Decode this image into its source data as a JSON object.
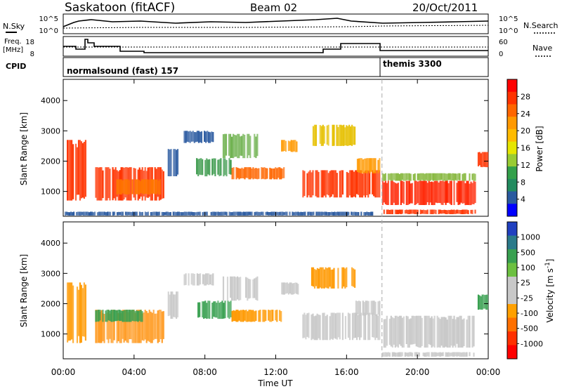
{
  "header": {
    "station": "Saskatoon (fitACF)",
    "beam": "Beam 02",
    "date": "20/Oct/2011"
  },
  "top_panels": {
    "nsky_label": "N.Sky",
    "nsearch_label": "N.Search",
    "noise_ticks_left": [
      "10^5",
      "10^0"
    ],
    "noise_ticks_right": [
      "10^5",
      "10^0"
    ],
    "freq_label_1": "Freq.",
    "freq_label_2": "[MHz]",
    "freq_ticks": [
      "18",
      "8"
    ],
    "nave_label": "Nave",
    "nave_ticks": [
      "60",
      "0"
    ],
    "cpid_label": "CPID",
    "cpid_segments": [
      {
        "label": "normalsound (fast) 157",
        "start_hour": 0,
        "end_hour": 18
      },
      {
        "label": "themis 3300",
        "start_hour": 18,
        "end_hour": 24
      }
    ]
  },
  "chart_data": [
    {
      "type": "heatmap",
      "title": "",
      "xlabel": "Time UT",
      "ylabel": "Slant Range [km]",
      "xlim_hours": [
        0,
        24
      ],
      "ylim_km": [
        180,
        4700
      ],
      "x_ticks": [
        "00:00",
        "04:00",
        "08:00",
        "12:00",
        "16:00",
        "20:00",
        "00:00"
      ],
      "y_ticks": [
        "1000",
        "2000",
        "3000",
        "4000"
      ],
      "y_tick_values": [
        1000,
        2000,
        3000,
        4000
      ],
      "colorbar": {
        "label": "Power [dB]",
        "ticks": [
          "28",
          "24",
          "20",
          "16",
          "12",
          "8",
          "4"
        ],
        "colors": [
          "#ff0000",
          "#ff3300",
          "#ff6600",
          "#ff9900",
          "#ffbb00",
          "#e6e600",
          "#99cc33",
          "#33a04a",
          "#228b5f",
          "#2a5aa0",
          "#0000ff"
        ]
      },
      "echo_regions": [
        {
          "t": [
            0.2,
            1.3
          ],
          "r": [
            700,
            2700
          ],
          "color": "#ff3300"
        },
        {
          "t": [
            1.8,
            5.7
          ],
          "r": [
            700,
            1800
          ],
          "color": "#ff3300"
        },
        {
          "t": [
            3.0,
            5.5
          ],
          "r": [
            900,
            1400
          ],
          "color": "#ff7700"
        },
        {
          "t": [
            5.9,
            6.5
          ],
          "r": [
            1500,
            2400
          ],
          "color": "#2a5aa0"
        },
        {
          "t": [
            6.8,
            8.5
          ],
          "r": [
            2600,
            3000
          ],
          "color": "#2a5aa0"
        },
        {
          "t": [
            7.5,
            9.5
          ],
          "r": [
            1500,
            2100
          ],
          "color": "#3c9a4c"
        },
        {
          "t": [
            9.0,
            11.0
          ],
          "r": [
            2100,
            2900
          ],
          "color": "#6cb04c"
        },
        {
          "t": [
            9.5,
            12.5
          ],
          "r": [
            1400,
            1800
          ],
          "color": "#ff6600"
        },
        {
          "t": [
            12.3,
            13.3
          ],
          "r": [
            2300,
            2700
          ],
          "color": "#ff9900"
        },
        {
          "t": [
            13.5,
            17.9
          ],
          "r": [
            800,
            1700
          ],
          "color": "#ff3300"
        },
        {
          "t": [
            14.0,
            16.5
          ],
          "r": [
            2500,
            3200
          ],
          "color": "#e6c000"
        },
        {
          "t": [
            16.5,
            17.9
          ],
          "r": [
            1600,
            2100
          ],
          "color": "#ff9900"
        },
        {
          "t": [
            18.0,
            23.3
          ],
          "r": [
            1350,
            1600
          ],
          "color": "#88b840"
        },
        {
          "t": [
            18.0,
            23.3
          ],
          "r": [
            550,
            1350
          ],
          "color": "#ff2200"
        },
        {
          "t": [
            18.0,
            23.3
          ],
          "r": [
            250,
            400
          ],
          "color": "#ff3300"
        },
        {
          "t": [
            23.4,
            24.0
          ],
          "r": [
            1800,
            2300
          ],
          "color": "#ff3300"
        },
        {
          "t": [
            0.0,
            17.5
          ],
          "r": [
            200,
            330
          ],
          "color": "#2a5aa0"
        }
      ]
    },
    {
      "type": "heatmap",
      "title": "",
      "xlabel": "Time UT",
      "ylabel": "Slant Range [km]",
      "xlim_hours": [
        0,
        24
      ],
      "ylim_km": [
        180,
        4700
      ],
      "x_ticks": [
        "00:00",
        "04:00",
        "08:00",
        "12:00",
        "16:00",
        "20:00",
        "00:00"
      ],
      "y_ticks": [
        "1000",
        "2000",
        "3000",
        "4000"
      ],
      "y_tick_values": [
        1000,
        2000,
        3000,
        4000
      ],
      "colorbar": {
        "label": "Velocity [m s^-1]",
        "ticks": [
          "1000",
          "500",
          "100",
          "25",
          "-25",
          "-100",
          "-500",
          "-1000"
        ],
        "colors": [
          "#2040c0",
          "#2a7a8a",
          "#38a050",
          "#6cc040",
          "#c8c8c8",
          "#c8c8c8",
          "#ffa000",
          "#ff7000",
          "#ff3000",
          "#ff0000"
        ]
      },
      "echo_regions": [
        {
          "t": [
            0.2,
            1.3
          ],
          "r": [
            700,
            2700
          ],
          "color": "#ff9900"
        },
        {
          "t": [
            1.8,
            5.7
          ],
          "r": [
            700,
            1800
          ],
          "color": "#ff9a20"
        },
        {
          "t": [
            1.8,
            4.5
          ],
          "r": [
            1400,
            1800
          ],
          "color": "#38a050"
        },
        {
          "t": [
            5.9,
            6.5
          ],
          "r": [
            1500,
            2400
          ],
          "color": "#c8c8c8"
        },
        {
          "t": [
            6.8,
            8.5
          ],
          "r": [
            2600,
            3000
          ],
          "color": "#c8c8c8"
        },
        {
          "t": [
            7.5,
            9.5
          ],
          "r": [
            1500,
            2100
          ],
          "color": "#38a050"
        },
        {
          "t": [
            9.0,
            11.0
          ],
          "r": [
            2100,
            2900
          ],
          "color": "#c8c8c8"
        },
        {
          "t": [
            9.5,
            12.5
          ],
          "r": [
            1400,
            1800
          ],
          "color": "#ff9900"
        },
        {
          "t": [
            12.3,
            13.3
          ],
          "r": [
            2300,
            2700
          ],
          "color": "#c8c8c8"
        },
        {
          "t": [
            13.5,
            17.9
          ],
          "r": [
            800,
            1700
          ],
          "color": "#c8c8c8"
        },
        {
          "t": [
            14.0,
            16.5
          ],
          "r": [
            2500,
            3200
          ],
          "color": "#ff9900"
        },
        {
          "t": [
            16.5,
            17.9
          ],
          "r": [
            1600,
            2100
          ],
          "color": "#c8c8c8"
        },
        {
          "t": [
            18.0,
            23.3
          ],
          "r": [
            550,
            1600
          ],
          "color": "#c8c8c8"
        },
        {
          "t": [
            18.0,
            23.3
          ],
          "r": [
            250,
            400
          ],
          "color": "#c8c8c8"
        },
        {
          "t": [
            23.4,
            24.0
          ],
          "r": [
            1800,
            2300
          ],
          "color": "#38a050"
        }
      ]
    }
  ]
}
